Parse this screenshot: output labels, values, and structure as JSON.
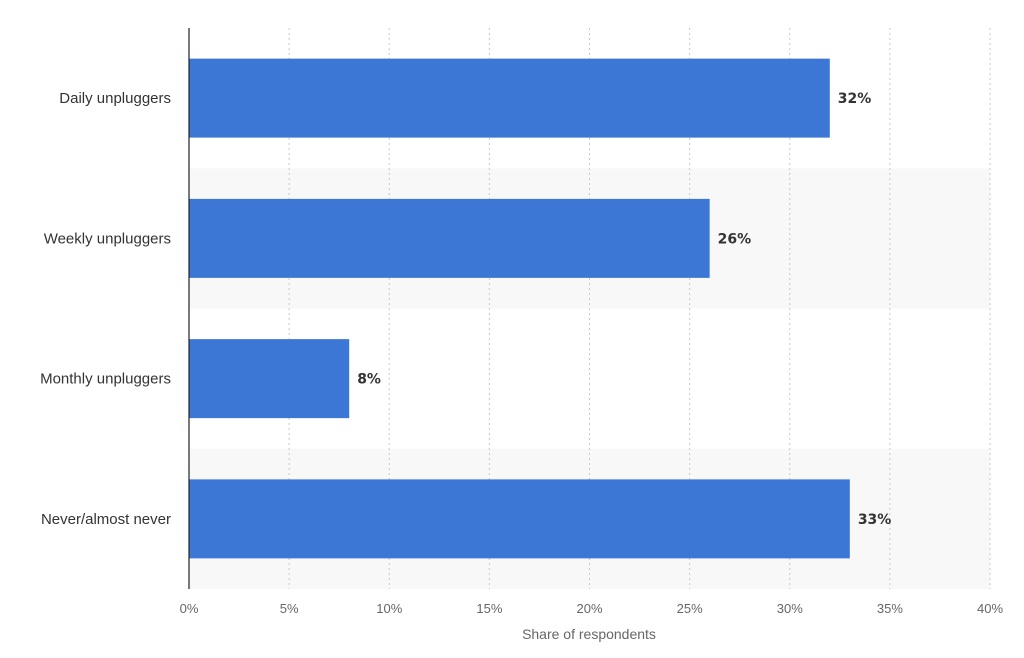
{
  "chart_data": {
    "type": "bar",
    "orientation": "horizontal",
    "categories": [
      "Daily unpluggers",
      "Weekly unpluggers",
      "Monthly unpluggers",
      "Never/almost never"
    ],
    "values": [
      32,
      26,
      8,
      33
    ],
    "value_labels": [
      "32%",
      "26%",
      "8%",
      "33%"
    ],
    "xlabel": "Share of respondents",
    "ylabel": "",
    "xlim": [
      0,
      40
    ],
    "x_ticks": [
      0,
      5,
      10,
      15,
      20,
      25,
      30,
      35,
      40
    ],
    "x_tick_labels": [
      "0%",
      "5%",
      "10%",
      "15%",
      "20%",
      "25%",
      "30%",
      "35%",
      "40%"
    ],
    "grid": true,
    "bar_color": "#3d77d6",
    "alternate_band_color": "#f8f8f8"
  }
}
